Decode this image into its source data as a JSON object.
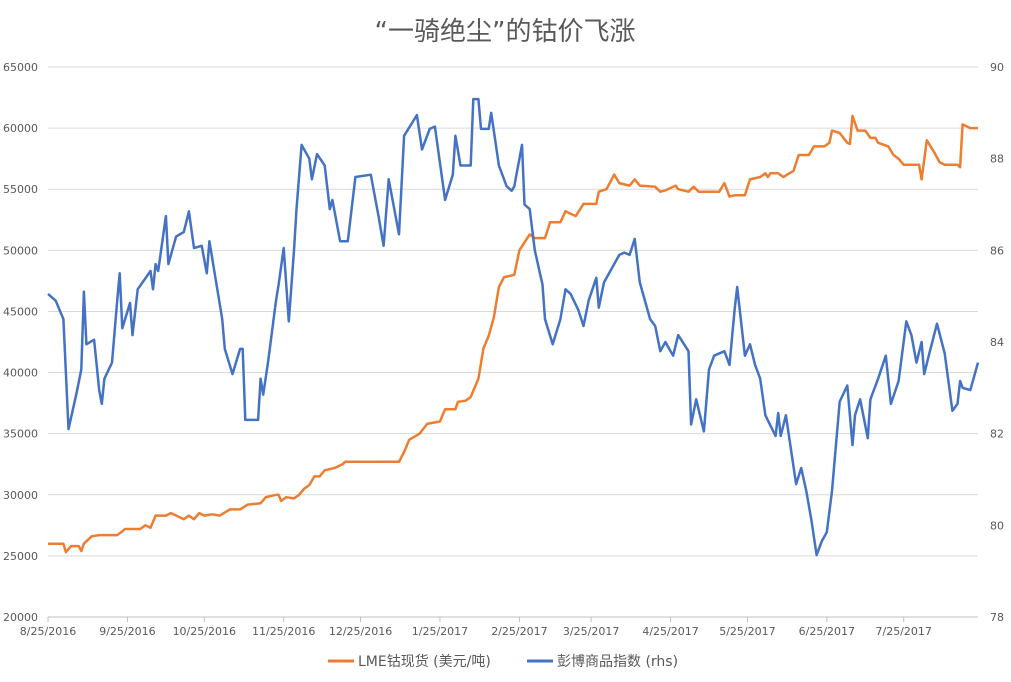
{
  "chart_data": {
    "type": "line",
    "title": "“一骑绝尘”的钴价飞涨",
    "xlabel": "",
    "ylabel": "",
    "x_unit": "days since 8/25/2016",
    "xlim": [
      0,
      363
    ],
    "ylim": [
      20000,
      65000
    ],
    "ylim_right": [
      78,
      90
    ],
    "grid": true,
    "legend_position": "bottom",
    "x_ticks": [
      {
        "label": "8/25/2016",
        "day": 0
      },
      {
        "label": "9/25/2016",
        "day": 31
      },
      {
        "label": "10/25/2016",
        "day": 61
      },
      {
        "label": "11/25/2016",
        "day": 92
      },
      {
        "label": "12/25/2016",
        "day": 122
      },
      {
        "label": "1/25/2017",
        "day": 153
      },
      {
        "label": "2/25/2017",
        "day": 184
      },
      {
        "label": "3/25/2017",
        "day": 212
      },
      {
        "label": "4/25/2017",
        "day": 243
      },
      {
        "label": "5/25/2017",
        "day": 273
      },
      {
        "label": "6/25/2017",
        "day": 304
      },
      {
        "label": "7/25/2017",
        "day": 334
      }
    ],
    "y_ticks_left": [
      "20000",
      "25000",
      "30000",
      "35000",
      "40000",
      "45000",
      "50000",
      "55000",
      "60000",
      "65000"
    ],
    "y_ticks_right": [
      "78",
      "80",
      "82",
      "84",
      "86",
      "88",
      "90"
    ],
    "series": [
      {
        "name": "LME钴现货 (美元/吨)",
        "axis": "left",
        "color": "#ED7D31",
        "points": [
          [
            0,
            26000
          ],
          [
            6,
            26000
          ],
          [
            7,
            25300
          ],
          [
            9,
            25800
          ],
          [
            12,
            25800
          ],
          [
            13,
            25400
          ],
          [
            14,
            26000
          ],
          [
            17,
            26600
          ],
          [
            20,
            26700
          ],
          [
            27,
            26700
          ],
          [
            29,
            27000
          ],
          [
            30,
            27200
          ],
          [
            36,
            27200
          ],
          [
            38,
            27500
          ],
          [
            40,
            27300
          ],
          [
            42,
            28300
          ],
          [
            46,
            28300
          ],
          [
            48,
            28500
          ],
          [
            51,
            28200
          ],
          [
            53,
            28000
          ],
          [
            55,
            28300
          ],
          [
            57,
            28000
          ],
          [
            59,
            28500
          ],
          [
            61,
            28300
          ],
          [
            64,
            28400
          ],
          [
            67,
            28300
          ],
          [
            71,
            28800
          ],
          [
            75,
            28800
          ],
          [
            78,
            29200
          ],
          [
            83,
            29300
          ],
          [
            85,
            29800
          ],
          [
            89,
            30000
          ],
          [
            90,
            30000
          ],
          [
            91,
            29500
          ],
          [
            93,
            29800
          ],
          [
            96,
            29700
          ],
          [
            98,
            30000
          ],
          [
            100,
            30500
          ],
          [
            102,
            30800
          ],
          [
            104,
            31500
          ],
          [
            106,
            31500
          ],
          [
            108,
            32000
          ],
          [
            112,
            32200
          ],
          [
            115,
            32500
          ],
          [
            116,
            32700
          ],
          [
            126,
            32700
          ],
          [
            137,
            32700
          ],
          [
            139,
            33500
          ],
          [
            141,
            34500
          ],
          [
            145,
            35000
          ],
          [
            148,
            35800
          ],
          [
            153,
            36000
          ],
          [
            155,
            37000
          ],
          [
            159,
            37000
          ],
          [
            160,
            37600
          ],
          [
            163,
            37700
          ],
          [
            165,
            38000
          ],
          [
            168,
            39500
          ],
          [
            170,
            42000
          ],
          [
            172,
            43000
          ],
          [
            174,
            44500
          ],
          [
            176,
            47000
          ],
          [
            178,
            47800
          ],
          [
            182,
            48000
          ],
          [
            184,
            50000
          ],
          [
            188,
            51300
          ],
          [
            190,
            51000
          ],
          [
            194,
            51000
          ],
          [
            196,
            52300
          ],
          [
            200,
            52300
          ],
          [
            202,
            53200
          ],
          [
            204,
            53000
          ],
          [
            206,
            52800
          ],
          [
            209,
            53800
          ],
          [
            214,
            53800
          ],
          [
            215,
            54800
          ],
          [
            218,
            55000
          ],
          [
            221,
            56200
          ],
          [
            223,
            55500
          ],
          [
            227,
            55300
          ],
          [
            229,
            55800
          ],
          [
            231,
            55300
          ],
          [
            237,
            55200
          ],
          [
            239,
            54800
          ],
          [
            241,
            54900
          ],
          [
            245,
            55300
          ],
          [
            246,
            55000
          ],
          [
            250,
            54800
          ],
          [
            252,
            55200
          ],
          [
            254,
            54800
          ],
          [
            258,
            54800
          ],
          [
            262,
            54800
          ],
          [
            264,
            55500
          ],
          [
            266,
            54400
          ],
          [
            268,
            54500
          ],
          [
            272,
            54500
          ],
          [
            274,
            55800
          ],
          [
            278,
            56000
          ],
          [
            280,
            56300
          ],
          [
            281,
            56000
          ],
          [
            282,
            56300
          ],
          [
            285,
            56300
          ],
          [
            287,
            56000
          ],
          [
            291,
            56500
          ],
          [
            293,
            57800
          ],
          [
            297,
            57800
          ],
          [
            299,
            58500
          ],
          [
            303,
            58500
          ],
          [
            305,
            58800
          ],
          [
            306,
            59800
          ],
          [
            309,
            59600
          ],
          [
            312,
            58800
          ],
          [
            313,
            58700
          ],
          [
            314,
            61000
          ],
          [
            316,
            59800
          ],
          [
            319,
            59800
          ],
          [
            321,
            59200
          ],
          [
            323,
            59200
          ],
          [
            324,
            58800
          ],
          [
            328,
            58500
          ],
          [
            330,
            57800
          ],
          [
            332,
            57500
          ],
          [
            334,
            57000
          ],
          [
            340,
            57000
          ],
          [
            341,
            55800
          ],
          [
            343,
            59000
          ],
          [
            346,
            58000
          ],
          [
            348,
            57200
          ],
          [
            350,
            57000
          ],
          [
            355,
            57000
          ],
          [
            356,
            56800
          ],
          [
            357,
            60300
          ],
          [
            360,
            60000
          ],
          [
            363,
            60000
          ]
        ]
      },
      {
        "name": "彭博商品指数 (rhs)",
        "axis": "right",
        "color": "#4472C4",
        "points": [
          [
            0,
            85.05
          ],
          [
            3,
            84.9
          ],
          [
            6,
            84.5
          ],
          [
            8,
            82.1
          ],
          [
            11,
            82.85
          ],
          [
            13,
            83.4
          ],
          [
            14,
            85.1
          ],
          [
            15,
            83.95
          ],
          [
            18,
            84.05
          ],
          [
            20,
            82.95
          ],
          [
            21,
            82.65
          ],
          [
            22,
            83.2
          ],
          [
            25,
            83.55
          ],
          [
            27,
            84.9
          ],
          [
            28,
            85.5
          ],
          [
            29,
            84.3
          ],
          [
            32,
            84.85
          ],
          [
            33,
            84.15
          ],
          [
            35,
            85.15
          ],
          [
            40,
            85.55
          ],
          [
            41,
            85.15
          ],
          [
            42,
            85.7
          ],
          [
            43,
            85.55
          ],
          [
            46,
            86.75
          ],
          [
            47,
            85.7
          ],
          [
            50,
            86.3
          ],
          [
            53,
            86.4
          ],
          [
            55,
            86.85
          ],
          [
            57,
            86.05
          ],
          [
            60,
            86.1
          ],
          [
            62,
            85.5
          ],
          [
            63,
            86.2
          ],
          [
            68,
            84.5
          ],
          [
            69,
            83.85
          ],
          [
            72,
            83.3
          ],
          [
            75,
            83.85
          ],
          [
            76,
            83.85
          ],
          [
            77,
            82.3
          ],
          [
            82,
            82.3
          ],
          [
            83,
            83.2
          ],
          [
            84,
            82.85
          ],
          [
            86,
            83.6
          ],
          [
            89,
            84.9
          ],
          [
            90,
            85.25
          ],
          [
            92,
            86.05
          ],
          [
            94,
            84.45
          ],
          [
            96,
            86.0
          ],
          [
            97,
            86.9
          ],
          [
            99,
            88.3
          ],
          [
            102,
            88.0
          ],
          [
            103,
            87.55
          ],
          [
            105,
            88.1
          ],
          [
            108,
            87.85
          ],
          [
            110,
            86.9
          ],
          [
            111,
            87.1
          ],
          [
            114,
            86.2
          ],
          [
            117,
            86.2
          ],
          [
            120,
            87.6
          ],
          [
            126,
            87.65
          ],
          [
            129,
            86.75
          ],
          [
            131,
            86.1
          ],
          [
            133,
            87.55
          ],
          [
            137,
            86.35
          ],
          [
            139,
            88.5
          ],
          [
            144,
            88.95
          ],
          [
            146,
            88.2
          ],
          [
            149,
            88.65
          ],
          [
            151,
            88.7
          ],
          [
            155,
            87.1
          ],
          [
            158,
            87.65
          ],
          [
            159,
            88.5
          ],
          [
            161,
            87.85
          ],
          [
            165,
            87.85
          ],
          [
            166,
            89.3
          ],
          [
            168,
            89.3
          ],
          [
            169,
            88.65
          ],
          [
            172,
            88.65
          ],
          [
            173,
            89.0
          ],
          [
            176,
            87.85
          ],
          [
            179,
            87.4
          ],
          [
            181,
            87.3
          ],
          [
            182,
            87.4
          ],
          [
            185,
            88.3
          ],
          [
            186,
            87.0
          ],
          [
            188,
            86.9
          ],
          [
            190,
            86.0
          ],
          [
            193,
            85.25
          ],
          [
            194,
            84.5
          ],
          [
            197,
            83.95
          ],
          [
            200,
            84.5
          ],
          [
            202,
            85.15
          ],
          [
            204,
            85.05
          ],
          [
            207,
            84.7
          ],
          [
            209,
            84.35
          ],
          [
            211,
            84.9
          ],
          [
            214,
            85.4
          ],
          [
            215,
            84.75
          ],
          [
            217,
            85.3
          ],
          [
            223,
            85.9
          ],
          [
            225,
            85.95
          ],
          [
            227,
            85.9
          ],
          [
            229,
            86.25
          ],
          [
            231,
            85.3
          ],
          [
            235,
            84.5
          ],
          [
            237,
            84.35
          ],
          [
            239,
            83.8
          ],
          [
            241,
            84.0
          ],
          [
            244,
            83.7
          ],
          [
            246,
            84.15
          ],
          [
            250,
            83.8
          ],
          [
            251,
            82.2
          ],
          [
            253,
            82.75
          ],
          [
            256,
            82.05
          ],
          [
            258,
            83.4
          ],
          [
            260,
            83.7
          ],
          [
            264,
            83.8
          ],
          [
            266,
            83.5
          ],
          [
            268,
            84.7
          ],
          [
            269,
            85.2
          ],
          [
            272,
            83.7
          ],
          [
            274,
            83.95
          ],
          [
            276,
            83.5
          ],
          [
            278,
            83.2
          ],
          [
            280,
            82.4
          ],
          [
            284,
            81.95
          ],
          [
            285,
            82.45
          ],
          [
            286,
            81.95
          ],
          [
            288,
            82.4
          ],
          [
            290,
            81.65
          ],
          [
            292,
            80.9
          ],
          [
            294,
            81.25
          ],
          [
            296,
            80.75
          ],
          [
            298,
            80.1
          ],
          [
            300,
            79.35
          ],
          [
            302,
            79.65
          ],
          [
            304,
            79.85
          ],
          [
            306,
            80.75
          ],
          [
            309,
            82.7
          ],
          [
            312,
            83.05
          ],
          [
            314,
            81.75
          ],
          [
            315,
            82.4
          ],
          [
            317,
            82.75
          ],
          [
            320,
            81.9
          ],
          [
            321,
            82.75
          ],
          [
            324,
            83.2
          ],
          [
            327,
            83.7
          ],
          [
            329,
            82.65
          ],
          [
            332,
            83.15
          ],
          [
            335,
            84.45
          ],
          [
            337,
            84.15
          ],
          [
            339,
            83.55
          ],
          [
            341,
            84.0
          ],
          [
            342,
            83.3
          ],
          [
            344,
            83.75
          ],
          [
            347,
            84.4
          ],
          [
            350,
            83.75
          ],
          [
            353,
            82.5
          ],
          [
            355,
            82.65
          ],
          [
            356,
            83.15
          ],
          [
            357,
            83.0
          ],
          [
            360,
            82.95
          ],
          [
            363,
            83.55
          ]
        ]
      }
    ]
  }
}
